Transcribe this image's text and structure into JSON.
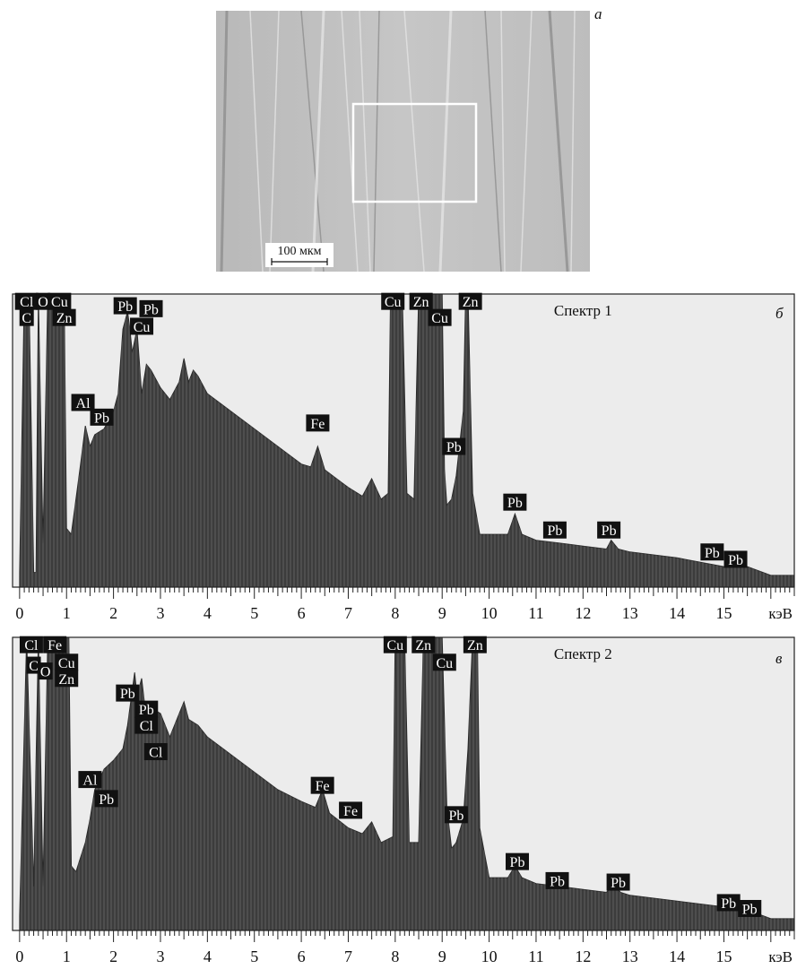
{
  "micrograph": {
    "panel_label": "а",
    "scale_bar_label": "100 мкм"
  },
  "charts": [
    {
      "panel_label": "б",
      "chart_data": {
        "type": "area",
        "title": "Спектр 1",
        "xlabel": "кэВ",
        "ylabel": "",
        "xlim": [
          -0.15,
          16.5
        ],
        "ylim": [
          0,
          100
        ],
        "x_ticks": [
          0,
          1,
          2,
          3,
          4,
          5,
          6,
          7,
          8,
          9,
          10,
          11,
          12,
          13,
          14,
          15
        ],
        "grid": false,
        "background": "#ececec",
        "fill_color": "#3c3c3c",
        "x": [
          0.0,
          0.1,
          0.2,
          0.3,
          0.35,
          0.4,
          0.5,
          0.6,
          0.7,
          0.75,
          0.85,
          0.95,
          1.0,
          1.1,
          1.2,
          1.3,
          1.4,
          1.5,
          1.6,
          1.8,
          2.0,
          2.1,
          2.2,
          2.3,
          2.35,
          2.4,
          2.5,
          2.6,
          2.7,
          2.8,
          3.0,
          3.2,
          3.4,
          3.5,
          3.6,
          3.7,
          3.8,
          4.0,
          4.5,
          5.0,
          5.5,
          6.0,
          6.2,
          6.35,
          6.5,
          7.0,
          7.3,
          7.5,
          7.7,
          7.85,
          7.9,
          8.0,
          8.1,
          8.15,
          8.25,
          8.4,
          8.5,
          8.55,
          9.0,
          9.05,
          9.1,
          9.2,
          9.3,
          9.45,
          9.5,
          9.55,
          9.65,
          9.8,
          10.0,
          10.4,
          10.55,
          10.7,
          11.0,
          11.5,
          12.0,
          12.5,
          12.6,
          12.75,
          13.0,
          14.0,
          15.0,
          15.5,
          16.0,
          16.5
        ],
        "y": [
          5,
          100,
          100,
          5,
          5,
          100,
          15,
          100,
          100,
          100,
          100,
          100,
          20,
          18,
          30,
          42,
          55,
          48,
          52,
          54,
          60,
          66,
          88,
          94,
          88,
          80,
          88,
          66,
          76,
          74,
          68,
          64,
          70,
          78,
          70,
          74,
          72,
          66,
          60,
          54,
          48,
          42,
          41,
          48,
          40,
          34,
          31,
          37,
          30,
          32,
          100,
          100,
          100,
          100,
          32,
          30,
          100,
          100,
          100,
          40,
          28,
          30,
          38,
          60,
          100,
          100,
          32,
          18,
          18,
          18,
          25,
          18,
          16,
          15,
          14,
          13,
          16,
          13,
          12,
          10,
          7,
          7,
          4,
          4
        ],
        "annotations": [
          {
            "text": "Cl",
            "x": 0.15,
            "y": 97.5
          },
          {
            "text": "O",
            "x": 0.5,
            "y": 97.5
          },
          {
            "text": "Cu",
            "x": 0.85,
            "y": 97.5
          },
          {
            "text": "C",
            "x": 0.15,
            "y": 92.0
          },
          {
            "text": "Zn",
            "x": 0.95,
            "y": 92.0
          },
          {
            "text": "Pb",
            "x": 2.25,
            "y": 96.0
          },
          {
            "text": "Pb",
            "x": 2.8,
            "y": 95.0
          },
          {
            "text": "Cu",
            "x": 2.6,
            "y": 89.0
          },
          {
            "text": "Al",
            "x": 1.35,
            "y": 63.0
          },
          {
            "text": "Pb",
            "x": 1.75,
            "y": 58.0
          },
          {
            "text": "Fe",
            "x": 6.35,
            "y": 56.0
          },
          {
            "text": "Cu",
            "x": 7.95,
            "y": 97.5
          },
          {
            "text": "Zn",
            "x": 8.55,
            "y": 97.5
          },
          {
            "text": "Cu",
            "x": 8.95,
            "y": 92.0
          },
          {
            "text": "Zn",
            "x": 9.6,
            "y": 97.5
          },
          {
            "text": "Pb",
            "x": 9.25,
            "y": 48.0
          },
          {
            "text": "Pb",
            "x": 10.55,
            "y": 29.0
          },
          {
            "text": "Pb",
            "x": 11.4,
            "y": 19.5
          },
          {
            "text": "Pb",
            "x": 12.55,
            "y": 19.5
          },
          {
            "text": "Pb",
            "x": 14.75,
            "y": 12.0
          },
          {
            "text": "Pb",
            "x": 15.25,
            "y": 9.5
          }
        ]
      }
    },
    {
      "panel_label": "в",
      "chart_data": {
        "type": "area",
        "title": "Спектр 2",
        "xlabel": "кэВ",
        "ylabel": "",
        "xlim": [
          -0.15,
          16.5
        ],
        "ylim": [
          0,
          100
        ],
        "x_ticks": [
          0,
          1,
          2,
          3,
          4,
          5,
          6,
          7,
          8,
          9,
          10,
          11,
          12,
          13,
          14,
          15
        ],
        "grid": false,
        "background": "#ececec",
        "fill_color": "#3c3c3c",
        "x": [
          0.0,
          0.15,
          0.3,
          0.4,
          0.5,
          0.6,
          0.65,
          0.75,
          0.85,
          1.0,
          1.05,
          1.1,
          1.2,
          1.4,
          1.5,
          1.6,
          1.8,
          2.0,
          2.2,
          2.3,
          2.45,
          2.5,
          2.6,
          2.7,
          2.8,
          3.0,
          3.2,
          3.4,
          3.5,
          3.6,
          3.8,
          4.0,
          4.5,
          5.0,
          5.5,
          6.0,
          6.3,
          6.45,
          6.6,
          7.0,
          7.3,
          7.5,
          7.7,
          7.95,
          8.0,
          8.1,
          8.2,
          8.3,
          8.5,
          8.6,
          8.7,
          9.0,
          9.1,
          9.2,
          9.3,
          9.45,
          9.55,
          9.65,
          9.75,
          9.8,
          10.0,
          10.4,
          10.55,
          10.7,
          11.0,
          11.5,
          12.0,
          12.5,
          12.65,
          12.8,
          13.0,
          14.0,
          15.0,
          15.5,
          16.0,
          16.5
        ],
        "y": [
          5,
          100,
          15,
          100,
          15,
          100,
          100,
          100,
          100,
          100,
          100,
          22,
          20,
          30,
          38,
          48,
          55,
          58,
          62,
          70,
          88,
          80,
          86,
          72,
          76,
          74,
          66,
          74,
          78,
          72,
          70,
          66,
          60,
          54,
          48,
          44,
          42,
          48,
          40,
          35,
          33,
          37,
          30,
          32,
          100,
          100,
          100,
          30,
          30,
          100,
          100,
          100,
          42,
          28,
          30,
          38,
          62,
          100,
          100,
          35,
          18,
          18,
          22,
          18,
          16,
          15,
          14,
          13,
          16,
          13,
          12,
          10,
          8,
          7,
          4,
          4
        ],
        "annotations": [
          {
            "text": "Cl",
            "x": 0.25,
            "y": 97.5
          },
          {
            "text": "Fe",
            "x": 0.75,
            "y": 97.5
          },
          {
            "text": "C",
            "x": 0.3,
            "y": 90.5
          },
          {
            "text": "O",
            "x": 0.55,
            "y": 88.5
          },
          {
            "text": "Cu",
            "x": 1.0,
            "y": 91.5
          },
          {
            "text": "Zn",
            "x": 1.0,
            "y": 86.0
          },
          {
            "text": "Pb",
            "x": 2.3,
            "y": 81.0
          },
          {
            "text": "Pb",
            "x": 2.7,
            "y": 75.5
          },
          {
            "text": "Cl",
            "x": 2.7,
            "y": 70.0
          },
          {
            "text": "Cl",
            "x": 2.9,
            "y": 61.0
          },
          {
            "text": "Al",
            "x": 1.5,
            "y": 51.5
          },
          {
            "text": "Pb",
            "x": 1.85,
            "y": 45.0
          },
          {
            "text": "Fe",
            "x": 6.45,
            "y": 49.5
          },
          {
            "text": "Fe",
            "x": 7.05,
            "y": 41.0
          },
          {
            "text": "Cu",
            "x": 8.0,
            "y": 97.5
          },
          {
            "text": "Zn",
            "x": 8.6,
            "y": 97.5
          },
          {
            "text": "Cu",
            "x": 9.05,
            "y": 91.5
          },
          {
            "text": "Zn",
            "x": 9.7,
            "y": 97.5
          },
          {
            "text": "Pb",
            "x": 9.3,
            "y": 39.5
          },
          {
            "text": "Pb",
            "x": 10.6,
            "y": 23.5
          },
          {
            "text": "Pb",
            "x": 11.45,
            "y": 17.0
          },
          {
            "text": "Pb",
            "x": 12.75,
            "y": 16.5
          },
          {
            "text": "Pb",
            "x": 15.1,
            "y": 9.5
          },
          {
            "text": "Pb",
            "x": 15.55,
            "y": 7.5
          }
        ]
      }
    }
  ]
}
